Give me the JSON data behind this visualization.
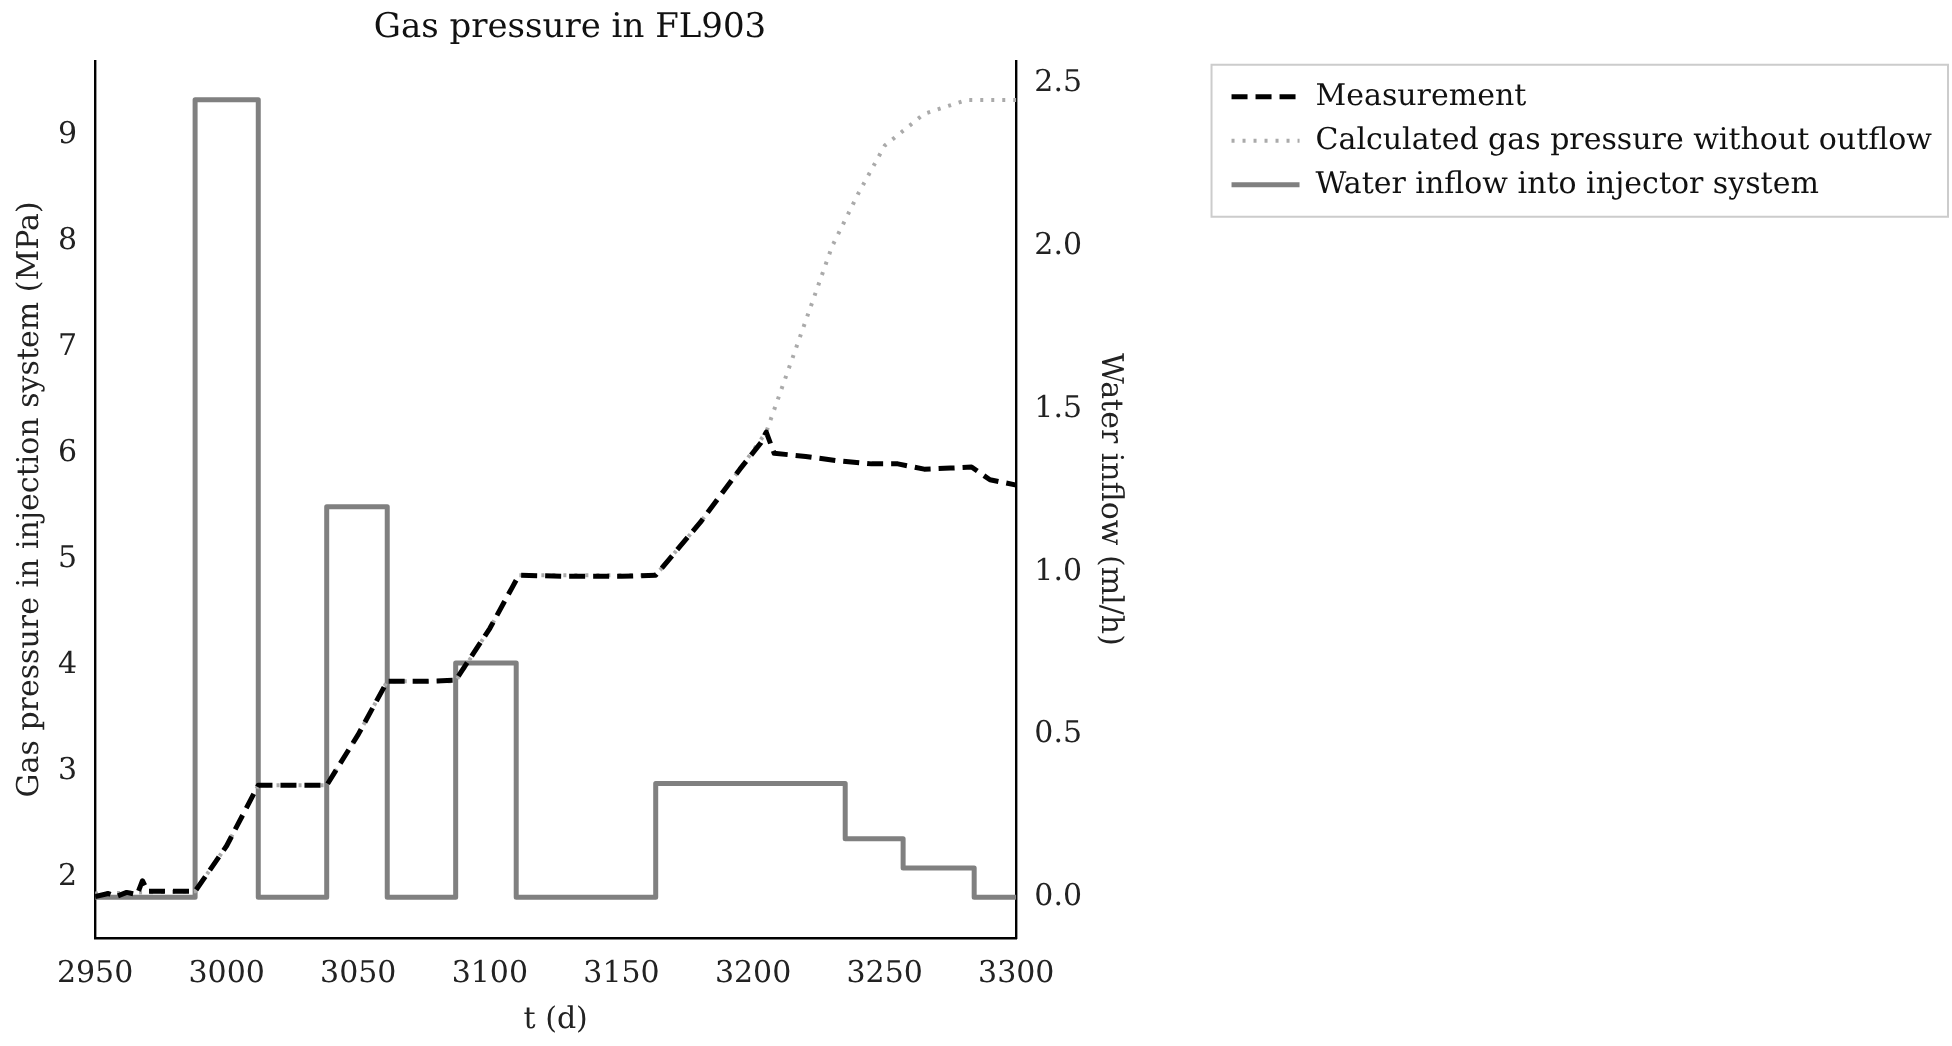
{
  "chart_data": {
    "type": "line",
    "title": "Gas pressure in FL903",
    "xlabel": "t (d)",
    "ylabel": "Gas pressure in injection system (MPa)",
    "y2label": "Water inflow (ml/h)",
    "xlim": [
      2950,
      3300
    ],
    "xticks": [
      2950,
      3000,
      3050,
      3100,
      3150,
      3200,
      3250,
      3300
    ],
    "ylim": [
      1.43,
      9.7
    ],
    "yticks": [
      2,
      3,
      4,
      5,
      6,
      7,
      8,
      9
    ],
    "y2lim": [
      -0.125,
      2.57
    ],
    "y2ticks": [
      {
        "value": 0,
        "label": "0.0"
      },
      {
        "value": 0.5,
        "label": "0.5"
      },
      {
        "value": 1,
        "label": "1.0"
      },
      {
        "value": 1.5,
        "label": "1.5"
      },
      {
        "value": 2,
        "label": "2.0"
      },
      {
        "value": 2.5,
        "label": "2.5"
      }
    ],
    "grid": false,
    "legend": "top right",
    "marker": "none",
    "series": [
      {
        "name": "Measurement",
        "type": "line",
        "color": "#000000",
        "line_style": "dashed",
        "x": [
          2950,
          2955,
          2958,
          2962,
          2966,
          2968,
          2970,
          2980,
          2988,
          3000,
          3012,
          3025,
          3038,
          3050,
          3061,
          3075,
          3087,
          3100,
          3111,
          3130,
          3150,
          3163,
          3180,
          3195,
          3203,
          3205,
          3208,
          3220,
          3232,
          3245,
          3255,
          3265,
          3275,
          3283,
          3290,
          3300
        ],
        "values": [
          1.82,
          1.85,
          1.82,
          1.86,
          1.84,
          1.97,
          1.87,
          1.87,
          1.87,
          2.3,
          2.87,
          2.87,
          2.87,
          3.35,
          3.85,
          3.85,
          3.86,
          4.35,
          4.85,
          4.84,
          4.84,
          4.85,
          5.35,
          5.85,
          6.1,
          6.2,
          6.0,
          5.97,
          5.93,
          5.9,
          5.9,
          5.85,
          5.86,
          5.87,
          5.75,
          5.7
        ]
      },
      {
        "name": "Calculated gas pressure without outflow",
        "type": "line",
        "color": "#aaaaaa",
        "line_style": "dotted",
        "x": [
          2950,
          2988,
          3000,
          3012,
          3038,
          3050,
          3061,
          3087,
          3100,
          3111,
          3163,
          3180,
          3195,
          3205,
          3215,
          3230,
          3240,
          3250,
          3265,
          3281,
          3300
        ],
        "values": [
          1.85,
          1.87,
          2.3,
          2.87,
          2.87,
          3.35,
          3.85,
          3.85,
          4.35,
          4.85,
          4.85,
          5.35,
          5.85,
          6.2,
          6.9,
          7.95,
          8.45,
          8.9,
          9.2,
          9.33,
          9.33
        ]
      },
      {
        "name": "Water inflow into injector system",
        "type": "step",
        "axis": "y2",
        "color": "#808080",
        "line_style": "solid",
        "x": [
          2950,
          2988,
          3012,
          3038,
          3061,
          3087,
          3110,
          3163,
          3235,
          3257,
          3284,
          3300
        ],
        "values": [
          0,
          2.45,
          0,
          1.2,
          0,
          0.72,
          0,
          0.35,
          0.18,
          0.09,
          0,
          0
        ]
      }
    ]
  }
}
